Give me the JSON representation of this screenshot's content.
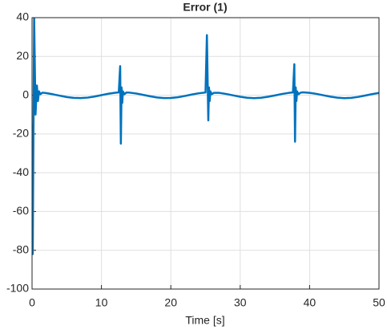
{
  "chart_data": {
    "type": "line",
    "title": "Error (1)",
    "xlabel": "Time [s]",
    "x": [
      0,
      0.1,
      0.3,
      0.5,
      0.7,
      0.85,
      1,
      1.2,
      1.5,
      2,
      3,
      4,
      5,
      6,
      7,
      8,
      9,
      10,
      11,
      12,
      12.5,
      12.7,
      12.8,
      12.9,
      13.0,
      13.1,
      13.3,
      13.6,
      14,
      15,
      16,
      17,
      18,
      19,
      20,
      21,
      22,
      23,
      24,
      25,
      25.2,
      25.4,
      25.5,
      25.6,
      25.7,
      25.9,
      26.2,
      27,
      28,
      29,
      30,
      31,
      32,
      33,
      34,
      35,
      36,
      37,
      37.6,
      37.8,
      37.9,
      38.0,
      38.1,
      38.2,
      38.4,
      38.7,
      39,
      40,
      41,
      42,
      43,
      44,
      45,
      46,
      47,
      48,
      49,
      50
    ],
    "series": [
      {
        "color": "#0072bd",
        "values": [
          -15,
          -82,
          40,
          -10,
          5,
          -3,
          2,
          0.5,
          1.3,
          1.1,
          0.48,
          -0.26,
          -0.94,
          -1.38,
          -1.49,
          -1.24,
          -0.68,
          0.04,
          0.75,
          1.28,
          1.43,
          15,
          -25,
          4,
          -4,
          2,
          0.5,
          1.4,
          1.35,
          0.88,
          0.19,
          -0.55,
          -1.15,
          -1.47,
          -1.43,
          -1.05,
          -0.41,
          0.33,
          0.99,
          1.41,
          31,
          -13,
          4,
          -3,
          2,
          0.5,
          1.2,
          1.2,
          0.62,
          -0.11,
          -0.81,
          -1.32,
          -1.5,
          -1.32,
          -0.81,
          -0.11,
          0.62,
          1.2,
          1.41,
          16,
          -24,
          4,
          -3,
          2,
          0.5,
          1.3,
          1.49,
          1.24,
          0.68,
          -0.04,
          -0.75,
          -1.28,
          -1.5,
          -1.35,
          -0.88,
          -0.19,
          0.55,
          1.15
        ]
      }
    ],
    "xlim": [
      0,
      50
    ],
    "xticks": [
      0,
      10,
      20,
      30,
      40,
      50
    ],
    "ylim": [
      -100,
      40
    ],
    "yticks": [
      -100,
      -80,
      -60,
      -40,
      -20,
      0,
      20,
      40
    ],
    "grid": true
  }
}
